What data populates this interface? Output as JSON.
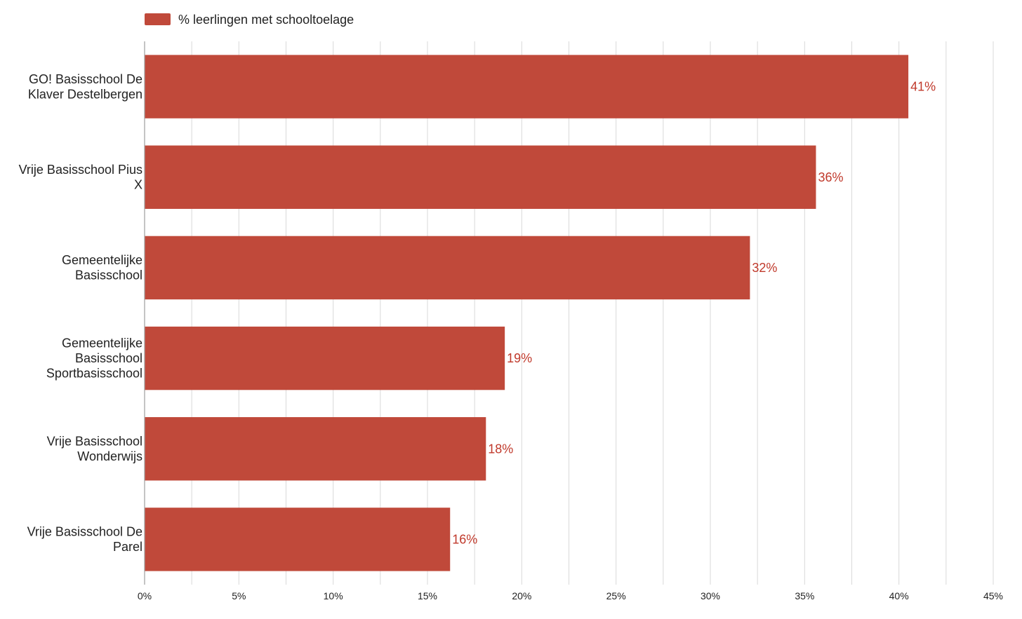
{
  "chart_data": {
    "type": "bar",
    "orientation": "horizontal",
    "legend": {
      "label": "% leerlingen met schooltoelage",
      "position": "top-left"
    },
    "colors": {
      "bar": "#C0493A",
      "data_label": "#C0392B",
      "grid": "#D9D9D9",
      "axis": "#9E9E9E",
      "text": "#222222"
    },
    "categories": [
      "GO! Basisschool De Klaver Destelbergen",
      "Vrije Basisschool Pius X",
      "Gemeentelijke Basisschool",
      "Gemeentelijke Basisschool Sportbasisschool",
      "Vrije Basisschool Wonderwijs",
      "Vrije Basisschool De Parel"
    ],
    "category_label_lines": [
      [
        "GO! Basisschool De",
        "Klaver Destelbergen"
      ],
      [
        "Vrije Basisschool Pius",
        "X"
      ],
      [
        "Gemeentelijke",
        "Basisschool"
      ],
      [
        "Gemeentelijke",
        "Basisschool",
        "Sportbasisschool"
      ],
      [
        "Vrije Basisschool",
        "Wonderwijs"
      ],
      [
        "Vrije Basisschool De",
        "Parel"
      ]
    ],
    "series": [
      {
        "name": "% leerlingen met schooltoelage",
        "values": [
          40.5,
          35.6,
          32.1,
          19.1,
          18.1,
          16.2
        ]
      }
    ],
    "data_labels": [
      "41%",
      "36%",
      "32%",
      "19%",
      "18%",
      "16%"
    ],
    "xlim": [
      0,
      45
    ],
    "x_ticks": [
      0,
      2.5,
      5,
      7.5,
      10,
      12.5,
      15,
      17.5,
      20,
      22.5,
      25,
      27.5,
      30,
      32.5,
      35,
      37.5,
      40,
      42.5,
      45
    ],
    "x_tick_labels": [
      {
        "value": 0,
        "label": "0%"
      },
      {
        "value": 5,
        "label": "5%"
      },
      {
        "value": 10,
        "label": "10%"
      },
      {
        "value": 15,
        "label": "15%"
      },
      {
        "value": 20,
        "label": "20%"
      },
      {
        "value": 25,
        "label": "25%"
      },
      {
        "value": 30,
        "label": "30%"
      },
      {
        "value": 35,
        "label": "35%"
      },
      {
        "value": 40,
        "label": "40%"
      },
      {
        "value": 45,
        "label": "45%"
      }
    ],
    "grid": true
  }
}
